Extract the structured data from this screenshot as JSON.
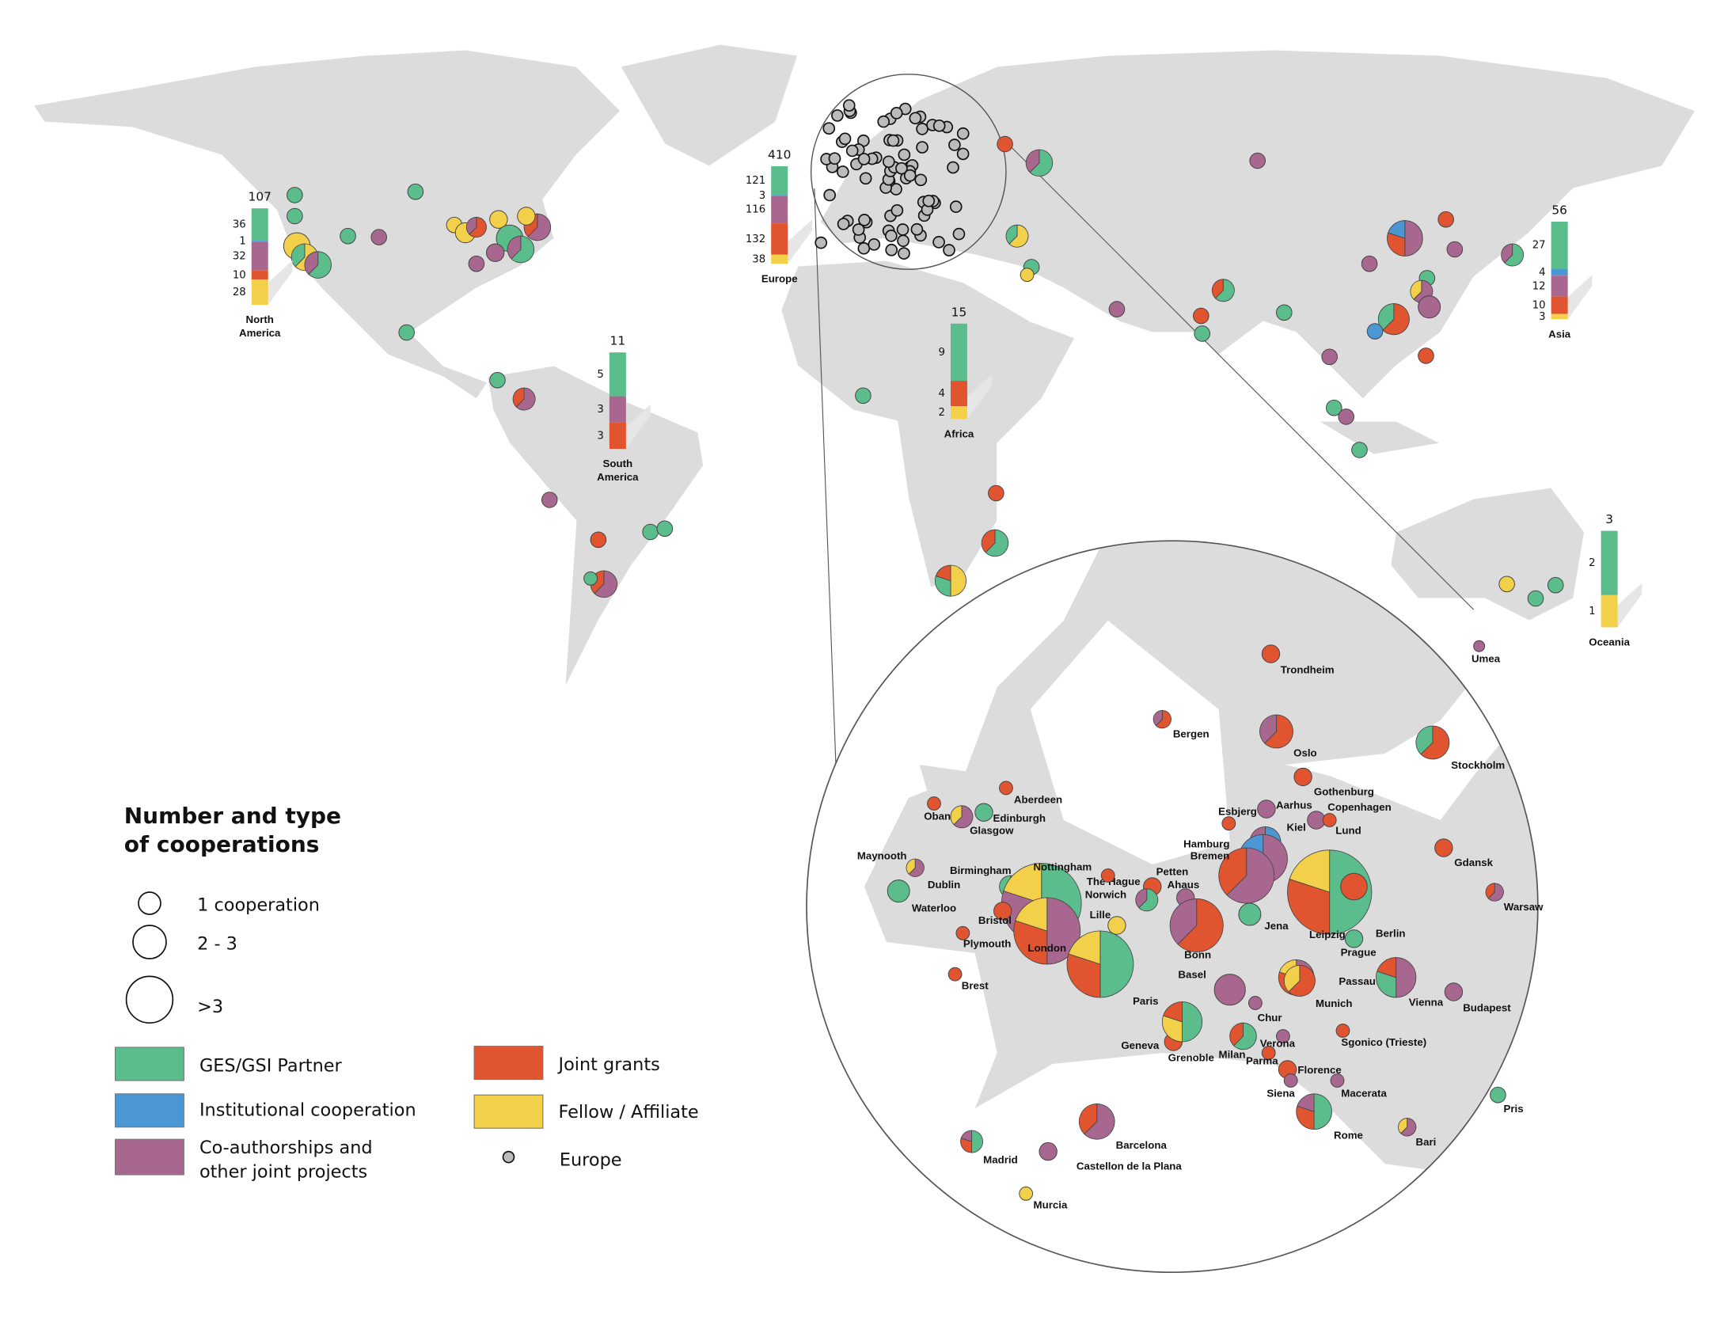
{
  "legend": {
    "title_lines": [
      "Number and type",
      "of cooperations"
    ],
    "sizes": [
      "1 cooperation",
      "2 - 3",
      ">3"
    ],
    "types": [
      {
        "label_lines": [
          "GES/GSI Partner"
        ],
        "color": "#5bbd8c"
      },
      {
        "label_lines": [
          "Institutional cooperation"
        ],
        "color": "#4a97d4"
      },
      {
        "label_lines": [
          "Co-authorships and",
          "other joint projects"
        ],
        "color": "#a8678f"
      },
      {
        "label_lines": [
          "Joint grants"
        ],
        "color": "#e0552f"
      },
      {
        "label_lines": [
          "Fellow / Affiliate"
        ],
        "color": "#f2d04a"
      }
    ],
    "europe": "Europe"
  },
  "regions": [
    {
      "name_lines": [
        "North",
        "America"
      ],
      "total": 107,
      "segments": [
        {
          "value": 36,
          "color": "#5bbd8c"
        },
        {
          "value": 1,
          "color": "#4a97d4"
        },
        {
          "value": 32,
          "color": "#a8678f"
        },
        {
          "value": 10,
          "color": "#e0552f"
        },
        {
          "value": 28,
          "color": "#f2d04a"
        }
      ]
    },
    {
      "name_lines": [
        "Europe"
      ],
      "total": 410,
      "segments": [
        {
          "value": 121,
          "color": "#5bbd8c"
        },
        {
          "value": 3,
          "color": "#4a97d4"
        },
        {
          "value": 116,
          "color": "#a8678f"
        },
        {
          "value": 132,
          "color": "#e0552f"
        },
        {
          "value": 38,
          "color": "#f2d04a"
        }
      ]
    },
    {
      "name_lines": [
        "South",
        "America"
      ],
      "total": 11,
      "segments": [
        {
          "value": 5,
          "color": "#5bbd8c"
        },
        {
          "value": 3,
          "color": "#a8678f"
        },
        {
          "value": 3,
          "color": "#e0552f"
        }
      ]
    },
    {
      "name_lines": [
        "Africa"
      ],
      "total": 15,
      "segments": [
        {
          "value": 9,
          "color": "#5bbd8c"
        },
        {
          "value": 4,
          "color": "#e0552f"
        },
        {
          "value": 2,
          "color": "#f2d04a"
        }
      ]
    },
    {
      "name_lines": [
        "Asia"
      ],
      "total": 56,
      "segments": [
        {
          "value": 27,
          "color": "#5bbd8c"
        },
        {
          "value": 4,
          "color": "#4a97d4"
        },
        {
          "value": 12,
          "color": "#a8678f"
        },
        {
          "value": 10,
          "color": "#e0552f"
        },
        {
          "value": 3,
          "color": "#f2d04a"
        }
      ]
    },
    {
      "name_lines": [
        "Oceania"
      ],
      "total": 3,
      "segments": [
        {
          "value": 2,
          "color": "#5bbd8c"
        },
        {
          "value": 1,
          "color": "#f2d04a"
        }
      ]
    }
  ],
  "cities": [
    "Trondheim",
    "Bergen",
    "Oslo",
    "Stockholm",
    "Gothenburg",
    "Aberdeen",
    "Aarhus",
    "Copenhagen",
    "Esbjerg",
    "Oban",
    "Edinburgh",
    "Kiel",
    "Lund",
    "Glasgow",
    "Maynooth",
    "Hamburg",
    "Bremen",
    "Gdansk",
    "Birmingham",
    "Nottingham",
    "Petten",
    "The Hague",
    "Dublin",
    "Ahaus",
    "Norwich",
    "Warsaw",
    "Waterloo",
    "Lille",
    "Bristol",
    "Jena",
    "Leipzig",
    "Berlin",
    "Plymouth",
    "London",
    "Bonn",
    "Prague",
    "Brest",
    "Passau",
    "Basel",
    "Vienna",
    "Paris",
    "Munich",
    "Budapest",
    "Chur",
    "Geneva",
    "Sgonico (Trieste)",
    "Verona",
    "Grenoble",
    "Milan",
    "Parma",
    "Florence",
    "Siena",
    "Macerata",
    "Rome",
    "Bari",
    "Barcelona",
    "Madrid",
    "Castellon de la Plana",
    "Murcia",
    "Umea",
    "Pris"
  ]
}
